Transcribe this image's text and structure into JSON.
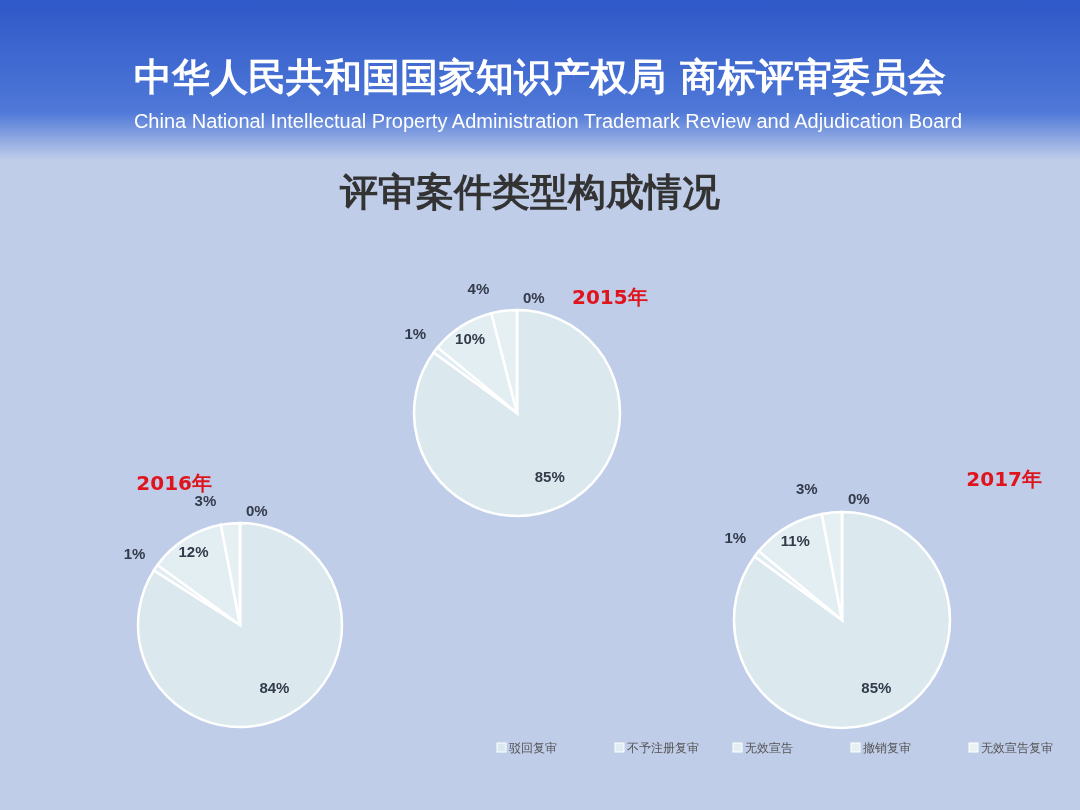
{
  "chart_data": [
    {
      "type": "pie",
      "title": "2015年",
      "annotations": [
        "中华人民共和国国家知识产权局  商标评审委员会",
        "China National Intellectual Property Administration   Trademark Review and Adjudication Board",
        "评审案件类型构成情况"
      ],
      "categories": [
        null,
        null,
        null,
        null,
        null
      ],
      "values": [
        85,
        1,
        10,
        4,
        0
      ],
      "value_labels": [
        "85%",
        "1%",
        "10%",
        "4%",
        "0%"
      ],
      "colors": [
        "#dbe9ef",
        "#dfecf1",
        "#e3eef2",
        "#e6f0f3",
        "#eaf2f4"
      ]
    },
    {
      "type": "pie",
      "title": "2016年",
      "categories": [
        null,
        null,
        null,
        null,
        null
      ],
      "values": [
        84,
        1,
        12,
        3,
        0
      ],
      "value_labels": [
        "84%",
        "1%",
        "12%",
        "3%",
        "0%"
      ],
      "colors": [
        "#dbe9ef",
        "#dfecf1",
        "#e3eef2",
        "#e6f0f3",
        "#eaf2f4"
      ]
    },
    {
      "type": "pie",
      "title": "2017年",
      "legend": "bottom",
      "categories": [
        "驳回复审",
        "不予注册复审",
        "无效宣告",
        "撤销复审",
        "无效宣告复审"
      ],
      "values": [
        85,
        1,
        11,
        3,
        0
      ],
      "value_labels": [
        "85%",
        "1%",
        "11%",
        "3%",
        "0%"
      ],
      "colors": [
        "#dbe9ef",
        "#dfecf1",
        "#e3eef2",
        "#e6f0f3",
        "#eaf2f4"
      ]
    }
  ]
}
